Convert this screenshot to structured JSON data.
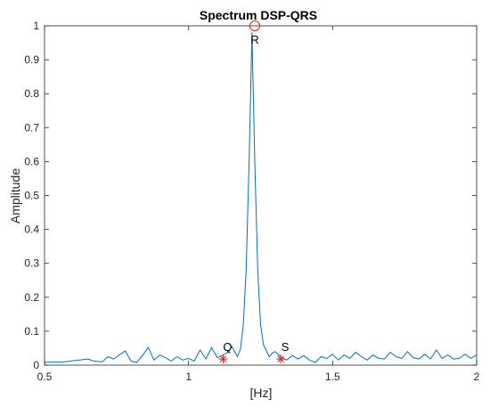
{
  "chart_data": {
    "type": "line",
    "title": "Spectrum DSP-QRS",
    "xlabel": "[Hz]",
    "ylabel": "Amplitude",
    "xlim": [
      0.5,
      2
    ],
    "ylim": [
      0,
      1
    ],
    "grid": false,
    "x_ticks": [
      0.5,
      1,
      1.5,
      2
    ],
    "x_tick_labels": [
      "0.5",
      "1",
      "1.5",
      "2"
    ],
    "y_ticks": [
      0,
      0.1,
      0.2,
      0.3,
      0.4,
      0.5,
      0.6,
      0.7,
      0.8,
      0.9,
      1
    ],
    "y_tick_labels": [
      "0",
      "0.1",
      "0.2",
      "0.3",
      "0.4",
      "0.5",
      "0.6",
      "0.7",
      "0.8",
      "0.9",
      "1"
    ],
    "series": [
      {
        "color": "#0072BD",
        "x": [
          0.5,
          0.52,
          0.55,
          0.57,
          0.6,
          0.62,
          0.65,
          0.67,
          0.7,
          0.72,
          0.74,
          0.76,
          0.78,
          0.8,
          0.82,
          0.84,
          0.86,
          0.88,
          0.9,
          0.92,
          0.94,
          0.96,
          0.98,
          1.0,
          1.02,
          1.04,
          1.06,
          1.08,
          1.1,
          1.12,
          1.14,
          1.15,
          1.17,
          1.18,
          1.19,
          1.2,
          1.21,
          1.22,
          1.23,
          1.24,
          1.25,
          1.26,
          1.27,
          1.28,
          1.29,
          1.3,
          1.32,
          1.34,
          1.36,
          1.38,
          1.4,
          1.42,
          1.44,
          1.46,
          1.48,
          1.5,
          1.52,
          1.54,
          1.56,
          1.58,
          1.6,
          1.62,
          1.64,
          1.66,
          1.68,
          1.7,
          1.72,
          1.74,
          1.76,
          1.78,
          1.8,
          1.82,
          1.84,
          1.86,
          1.88,
          1.9,
          1.92,
          1.94,
          1.96,
          1.98,
          2.0
        ],
        "y": [
          0.008,
          0.009,
          0.009,
          0.01,
          0.013,
          0.015,
          0.018,
          0.012,
          0.01,
          0.025,
          0.018,
          0.03,
          0.042,
          0.012,
          0.008,
          0.028,
          0.052,
          0.015,
          0.03,
          0.022,
          0.012,
          0.025,
          0.015,
          0.02,
          0.012,
          0.045,
          0.018,
          0.052,
          0.022,
          0.03,
          0.04,
          0.055,
          0.025,
          0.048,
          0.12,
          0.28,
          0.6,
          0.98,
          0.6,
          0.28,
          0.12,
          0.06,
          0.042,
          0.025,
          0.035,
          0.04,
          0.025,
          0.015,
          0.028,
          0.018,
          0.028,
          0.015,
          0.008,
          0.025,
          0.02,
          0.032,
          0.015,
          0.03,
          0.02,
          0.038,
          0.025,
          0.015,
          0.03,
          0.02,
          0.018,
          0.038,
          0.025,
          0.02,
          0.04,
          0.022,
          0.018,
          0.032,
          0.018,
          0.045,
          0.02,
          0.03,
          0.018,
          0.02,
          0.032,
          0.02,
          0.03
        ]
      }
    ],
    "points": [
      {
        "label": "R",
        "x": 1.23,
        "y": 1.0,
        "marker": "circle",
        "color": "#E41A1C"
      },
      {
        "label": "Q",
        "x": 1.12,
        "y": 0.018,
        "marker": "asterisk",
        "color": "#E41A1C"
      },
      {
        "label": "S",
        "x": 1.32,
        "y": 0.018,
        "marker": "asterisk",
        "color": "#E41A1C"
      }
    ]
  }
}
